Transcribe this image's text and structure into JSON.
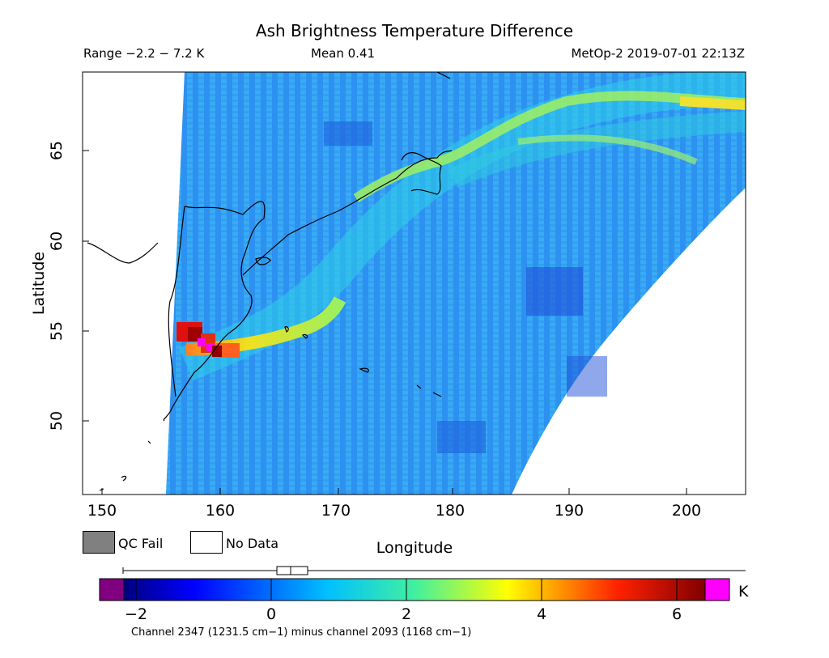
{
  "header": {
    "title": "Ash Brightness Temperature Difference",
    "range": "Range −2.2 − 7.2 K",
    "mean": "Mean 0.41",
    "satellite": "MetOp-2 2019-07-01 22:13Z"
  },
  "map": {
    "projection": "lat-lon",
    "lon_range": [
      149,
      205
    ],
    "lat_range": [
      46,
      69.5
    ],
    "x_ticks": [
      "150",
      "160",
      "170",
      "180",
      "190",
      "200"
    ],
    "y_ticks": [
      "50",
      "55",
      "60",
      "65"
    ],
    "x_label": "Longitude",
    "y_label": "Latitude",
    "features": [
      "Kamchatka Peninsula",
      "Sea of Okhotsk coast",
      "Bering Sea coast",
      "Commander Islands",
      "Aleutian Islands"
    ],
    "ash_plume": "high BTD along Kamchatka east coast near 54N 158-161E, extending NE along arc to 67N 205E",
    "max_bt_diff_location": "54.2N 159E"
  },
  "legend": {
    "qc_fail_label": "QC Fail",
    "no_data_label": "No Data",
    "qc_fail_color": "#808080",
    "no_data_color": "#ffffff"
  },
  "colorbar": {
    "unit": "K",
    "ticks": [
      "−2",
      "0",
      "2",
      "4",
      "6"
    ],
    "tick_values": [
      -2,
      0,
      2,
      4,
      6
    ],
    "min": -2.2,
    "max": 7.2,
    "underflow_color": "#800080",
    "overflow_color": "#ff00ff",
    "footnote": "Channel 2347 (1231.5 cm−1) minus channel 2093 (1168 cm−1)"
  },
  "palette": {
    "background": "#2a7ff0",
    "field": "#1f9df5",
    "plume_low": "#3fe0d0",
    "plume_mid": "#d8f030",
    "plume_high": "#ff3010",
    "plume_peak": "#ff00ff"
  }
}
